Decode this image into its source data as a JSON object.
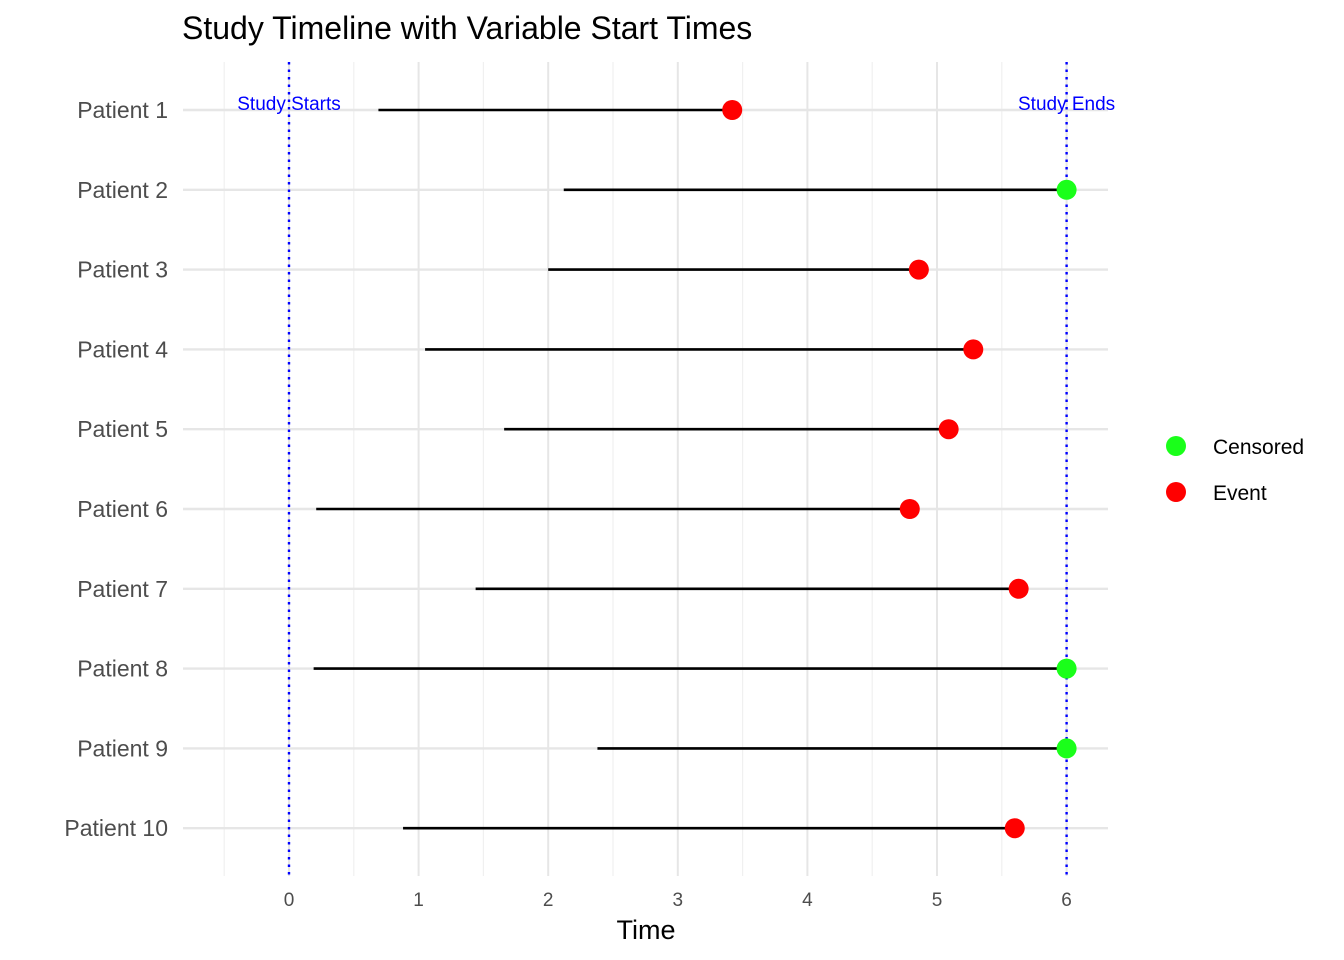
{
  "chart_data": {
    "type": "timeline",
    "title": "Study Timeline with Variable Start Times",
    "xlabel": "Time",
    "ylabel": "",
    "xlim": [
      -0.5,
      6.3
    ],
    "xticks": [
      0,
      1,
      2,
      3,
      4,
      5,
      6
    ],
    "grid": true,
    "legend_position": "right",
    "reference_lines": [
      {
        "x": 0,
        "label": "Study Starts",
        "color": "#0000ff",
        "style": "dotted"
      },
      {
        "x": 6,
        "label": "Study Ends",
        "color": "#0000ff",
        "style": "dotted"
      }
    ],
    "status_colors": {
      "Censored": "#1aff1a",
      "Event": "#ff0000"
    },
    "legend": [
      "Censored",
      "Event"
    ],
    "patients": [
      {
        "label": "Patient 1",
        "start": 0.69,
        "end": 3.42,
        "status": "Event"
      },
      {
        "label": "Patient 2",
        "start": 2.12,
        "end": 6.0,
        "status": "Censored"
      },
      {
        "label": "Patient 3",
        "start": 2.0,
        "end": 4.86,
        "status": "Event"
      },
      {
        "label": "Patient 4",
        "start": 1.05,
        "end": 5.28,
        "status": "Event"
      },
      {
        "label": "Patient 5",
        "start": 1.66,
        "end": 5.09,
        "status": "Event"
      },
      {
        "label": "Patient 6",
        "start": 0.21,
        "end": 4.79,
        "status": "Event"
      },
      {
        "label": "Patient 7",
        "start": 1.44,
        "end": 5.63,
        "status": "Event"
      },
      {
        "label": "Patient 8",
        "start": 0.19,
        "end": 6.0,
        "status": "Censored"
      },
      {
        "label": "Patient 9",
        "start": 2.38,
        "end": 6.0,
        "status": "Censored"
      },
      {
        "label": "Patient 10",
        "start": 0.88,
        "end": 5.6,
        "status": "Event"
      }
    ]
  }
}
